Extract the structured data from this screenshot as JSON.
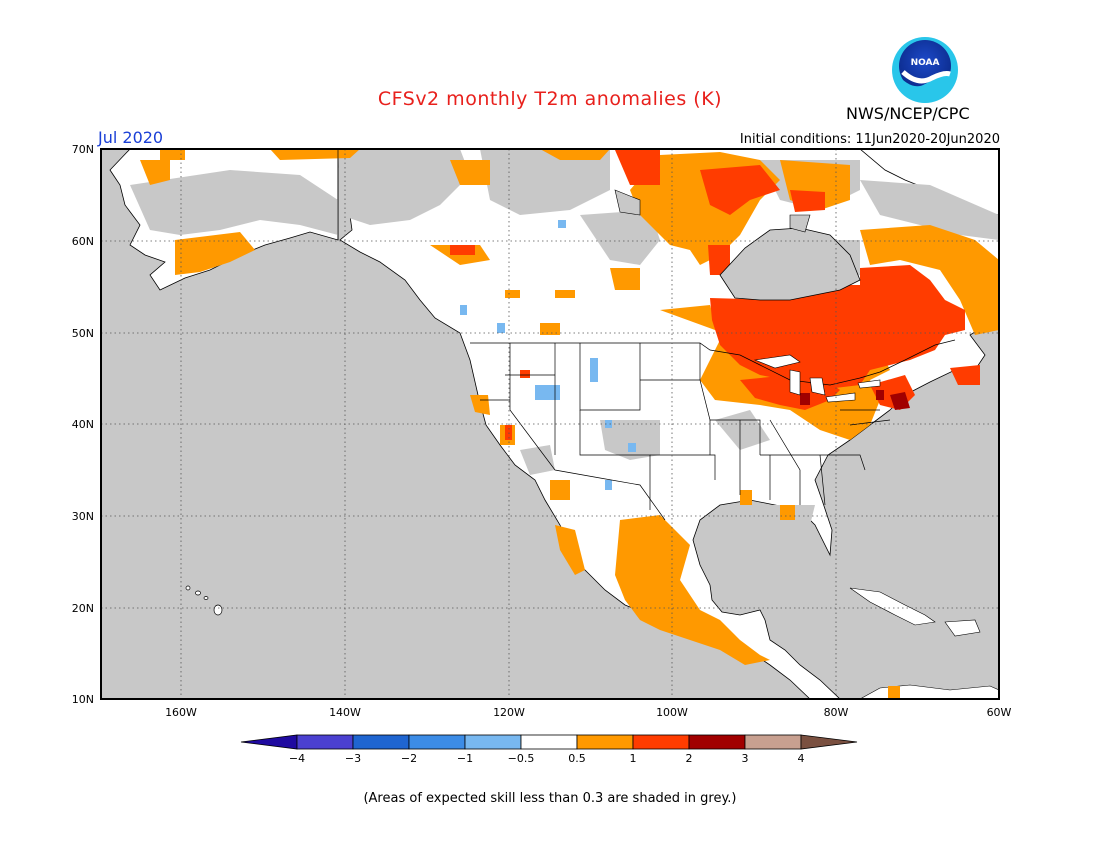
{
  "header": {
    "title": "CFSv2 monthly T2m anomalies (K)",
    "agency": "NWS/NCEP/CPC",
    "logo_text": "NOAA",
    "valid_month": "Jul 2020",
    "initial_conditions": "Initial conditions: 11Jun2020-20Jun2020"
  },
  "map": {
    "lon_range": [
      -171,
      -60
    ],
    "lat_range": [
      10,
      70
    ],
    "ocean_color": "#c8c8c8",
    "land_color": "#ffffff",
    "lat_labels": [
      "70N",
      "60N",
      "50N",
      "40N",
      "30N",
      "20N",
      "10N"
    ],
    "lon_labels": [
      "160W",
      "140W",
      "120W",
      "100W",
      "80W",
      "60W"
    ],
    "anomaly_regions": [
      {
        "category": "1 to 2",
        "color": "#ff3c00",
        "area": "Eastern Canada / Quebec / Ontario"
      },
      {
        "category": "0.5 to 1",
        "color": "#ff9900",
        "area": "Great Lakes, Northeast US, Mexico, Hudson Bay region"
      },
      {
        "category": "2 to 3",
        "color": "#a10000",
        "area": "Isolated cells in Northeast US"
      }
    ]
  },
  "colorbar": {
    "colors": [
      "#1f0aa0",
      "#4b40d0",
      "#1f65d0",
      "#3c8ce6",
      "#78b8f0",
      "#ffffff",
      "#ff9900",
      "#ff3c00",
      "#a10000",
      "#c8a090",
      "#7a5040"
    ],
    "labels": [
      "−4",
      "−3",
      "−2",
      "−1",
      "−0.5",
      "0.5",
      "1",
      "2",
      "3",
      "4"
    ]
  },
  "footer": {
    "skill_note": "(Areas of expected skill less than 0.3 are shaded in grey.)"
  }
}
